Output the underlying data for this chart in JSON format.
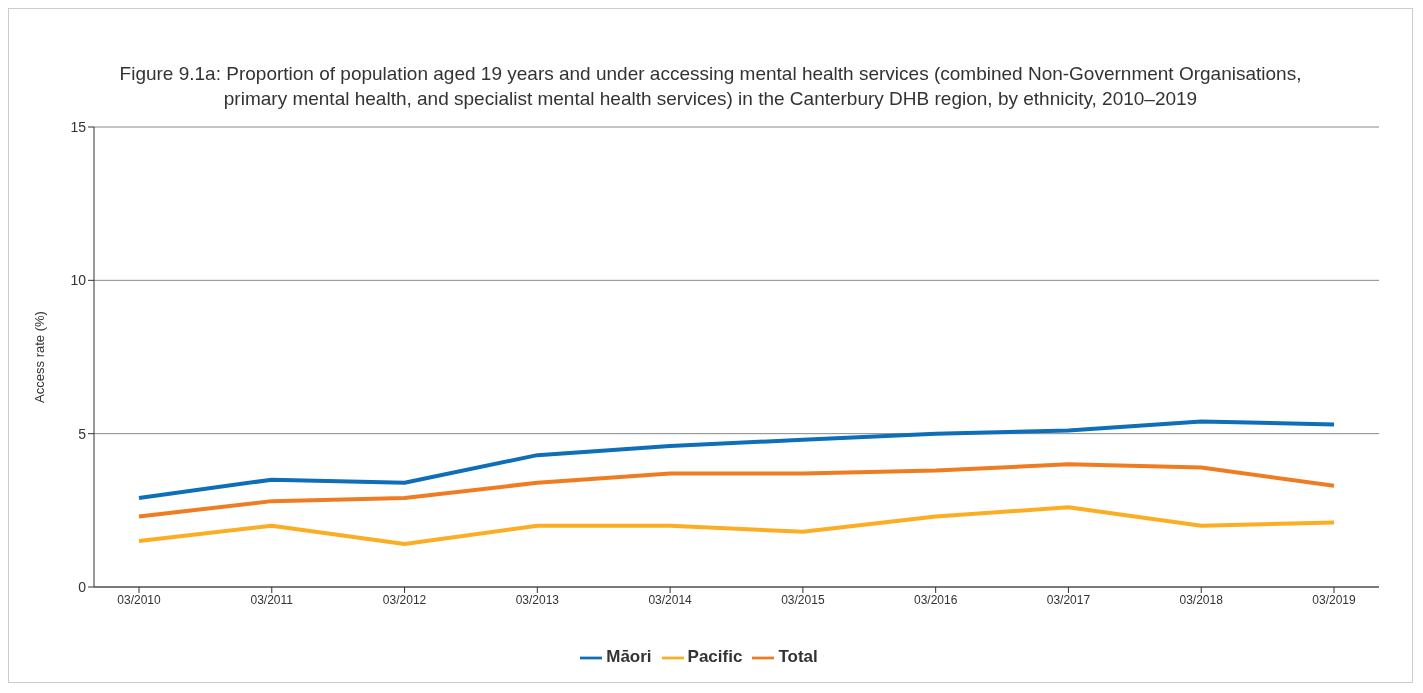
{
  "chart_data": {
    "type": "line",
    "title": "Figure 9.1a: Proportion of population aged 19 years and under accessing mental health services (combined Non-Government Organisations, primary mental health, and specialist mental health services) in the Canterbury DHB region, by ethnicity, 2010–2019",
    "ylabel": "Access rate (%)",
    "categories": [
      "03/2010",
      "03/2011",
      "03/2012",
      "03/2013",
      "03/2014",
      "03/2015",
      "03/2016",
      "03/2017",
      "03/2018",
      "03/2019"
    ],
    "series": [
      {
        "name": "Total",
        "color": "#f07c22",
        "values": [
          2.3,
          2.8,
          2.9,
          3.4,
          3.7,
          3.7,
          3.8,
          4.0,
          3.9,
          3.3
        ]
      },
      {
        "name": "Māori",
        "color": "#0e6eb8",
        "values": [
          2.9,
          3.5,
          3.4,
          4.3,
          4.6,
          4.8,
          5.0,
          5.1,
          5.4,
          5.3
        ]
      },
      {
        "name": "Pacific",
        "color": "#fbad23",
        "values": [
          1.5,
          2.0,
          1.4,
          2.0,
          2.0,
          1.8,
          2.3,
          2.6,
          2.0,
          2.1
        ]
      }
    ],
    "ylim": [
      0,
      15
    ],
    "yticks": [
      0,
      5,
      10,
      15
    ],
    "grid": "y",
    "legend": "bottom",
    "marker": "none",
    "line_style": "solid"
  }
}
